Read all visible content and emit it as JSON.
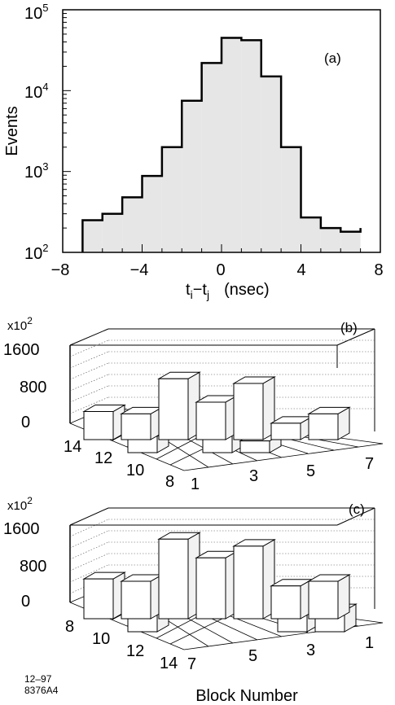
{
  "chart_data": [
    {
      "panel": "(a)",
      "type": "bar",
      "yscale": "log",
      "xlabel_main": "t",
      "xlabel_sub1": "i",
      "xlabel_dash": "−t",
      "xlabel_sub2": "j",
      "xlabel_unit": "(nsec)",
      "ylabel": "Events",
      "xlim": [
        -8,
        8
      ],
      "ylim": [
        100,
        100000
      ],
      "x_ticks": [
        "−8",
        "−4",
        "0",
        "4",
        "8"
      ],
      "y_ticks": [
        {
          "base": "10",
          "exp": "2"
        },
        {
          "base": "10",
          "exp": "3"
        },
        {
          "base": "10",
          "exp": "4"
        },
        {
          "base": "10",
          "exp": "5"
        }
      ],
      "bin_edges": [
        -7,
        -6,
        -5,
        -4,
        -3,
        -2,
        -1,
        0,
        1,
        2,
        3,
        4,
        5,
        6,
        7
      ],
      "values": [
        250,
        300,
        480,
        880,
        2000,
        7500,
        22000,
        45000,
        42000,
        15000,
        2000,
        270,
        200,
        180,
        200
      ],
      "fill_color": "#e6e6e6"
    },
    {
      "panel": "(b)",
      "type": "bar3d",
      "multiplier_base": "x10",
      "multiplier_exp": "2",
      "z_ticks": [
        "1600",
        "800",
        "0"
      ],
      "zlim": [
        0,
        1600
      ],
      "x_ticks": [
        "1",
        "3",
        "5",
        "7"
      ],
      "y_ticks": [
        "14",
        "12",
        "10",
        "8"
      ],
      "bars": [
        {
          "col": 1,
          "row": 14,
          "value": 600
        },
        {
          "col": 2,
          "row": 14,
          "value": 550
        },
        {
          "col": 3,
          "row": 14,
          "value": 1300
        },
        {
          "col": 4,
          "row": 14,
          "value": 800
        },
        {
          "col": 5,
          "row": 14,
          "value": 1200
        },
        {
          "col": 6,
          "row": 14,
          "value": 350
        },
        {
          "col": 7,
          "row": 14,
          "value": 550
        },
        {
          "col": 2,
          "row": 13,
          "value": 350
        },
        {
          "col": 4,
          "row": 13,
          "value": 700
        },
        {
          "col": 5,
          "row": 13,
          "value": 250
        }
      ]
    },
    {
      "panel": "(c)",
      "type": "bar3d",
      "multiplier_base": "x10",
      "multiplier_exp": "2",
      "z_ticks": [
        "1600",
        "800",
        "0"
      ],
      "zlim": [
        0,
        1600
      ],
      "x_ticks": [
        "7",
        "5",
        "3",
        "1"
      ],
      "y_ticks": [
        "8",
        "10",
        "12",
        "14"
      ],
      "bars": [
        {
          "col": 1,
          "row": 14,
          "value": 850
        },
        {
          "col": 2,
          "row": 14,
          "value": 800
        },
        {
          "col": 3,
          "row": 14,
          "value": 1700
        },
        {
          "col": 4,
          "row": 14,
          "value": 1300
        },
        {
          "col": 5,
          "row": 14,
          "value": 1550
        },
        {
          "col": 6,
          "row": 14,
          "value": 700
        },
        {
          "col": 7,
          "row": 14,
          "value": 800
        },
        {
          "col": 2,
          "row": 13,
          "value": 500
        },
        {
          "col": 6,
          "row": 13,
          "value": 500
        },
        {
          "col": 7,
          "row": 13,
          "value": 450
        }
      ]
    }
  ],
  "footer": {
    "xlabel": "Block Number",
    "code_line1": "12–97",
    "code_line2": "8376A4"
  }
}
